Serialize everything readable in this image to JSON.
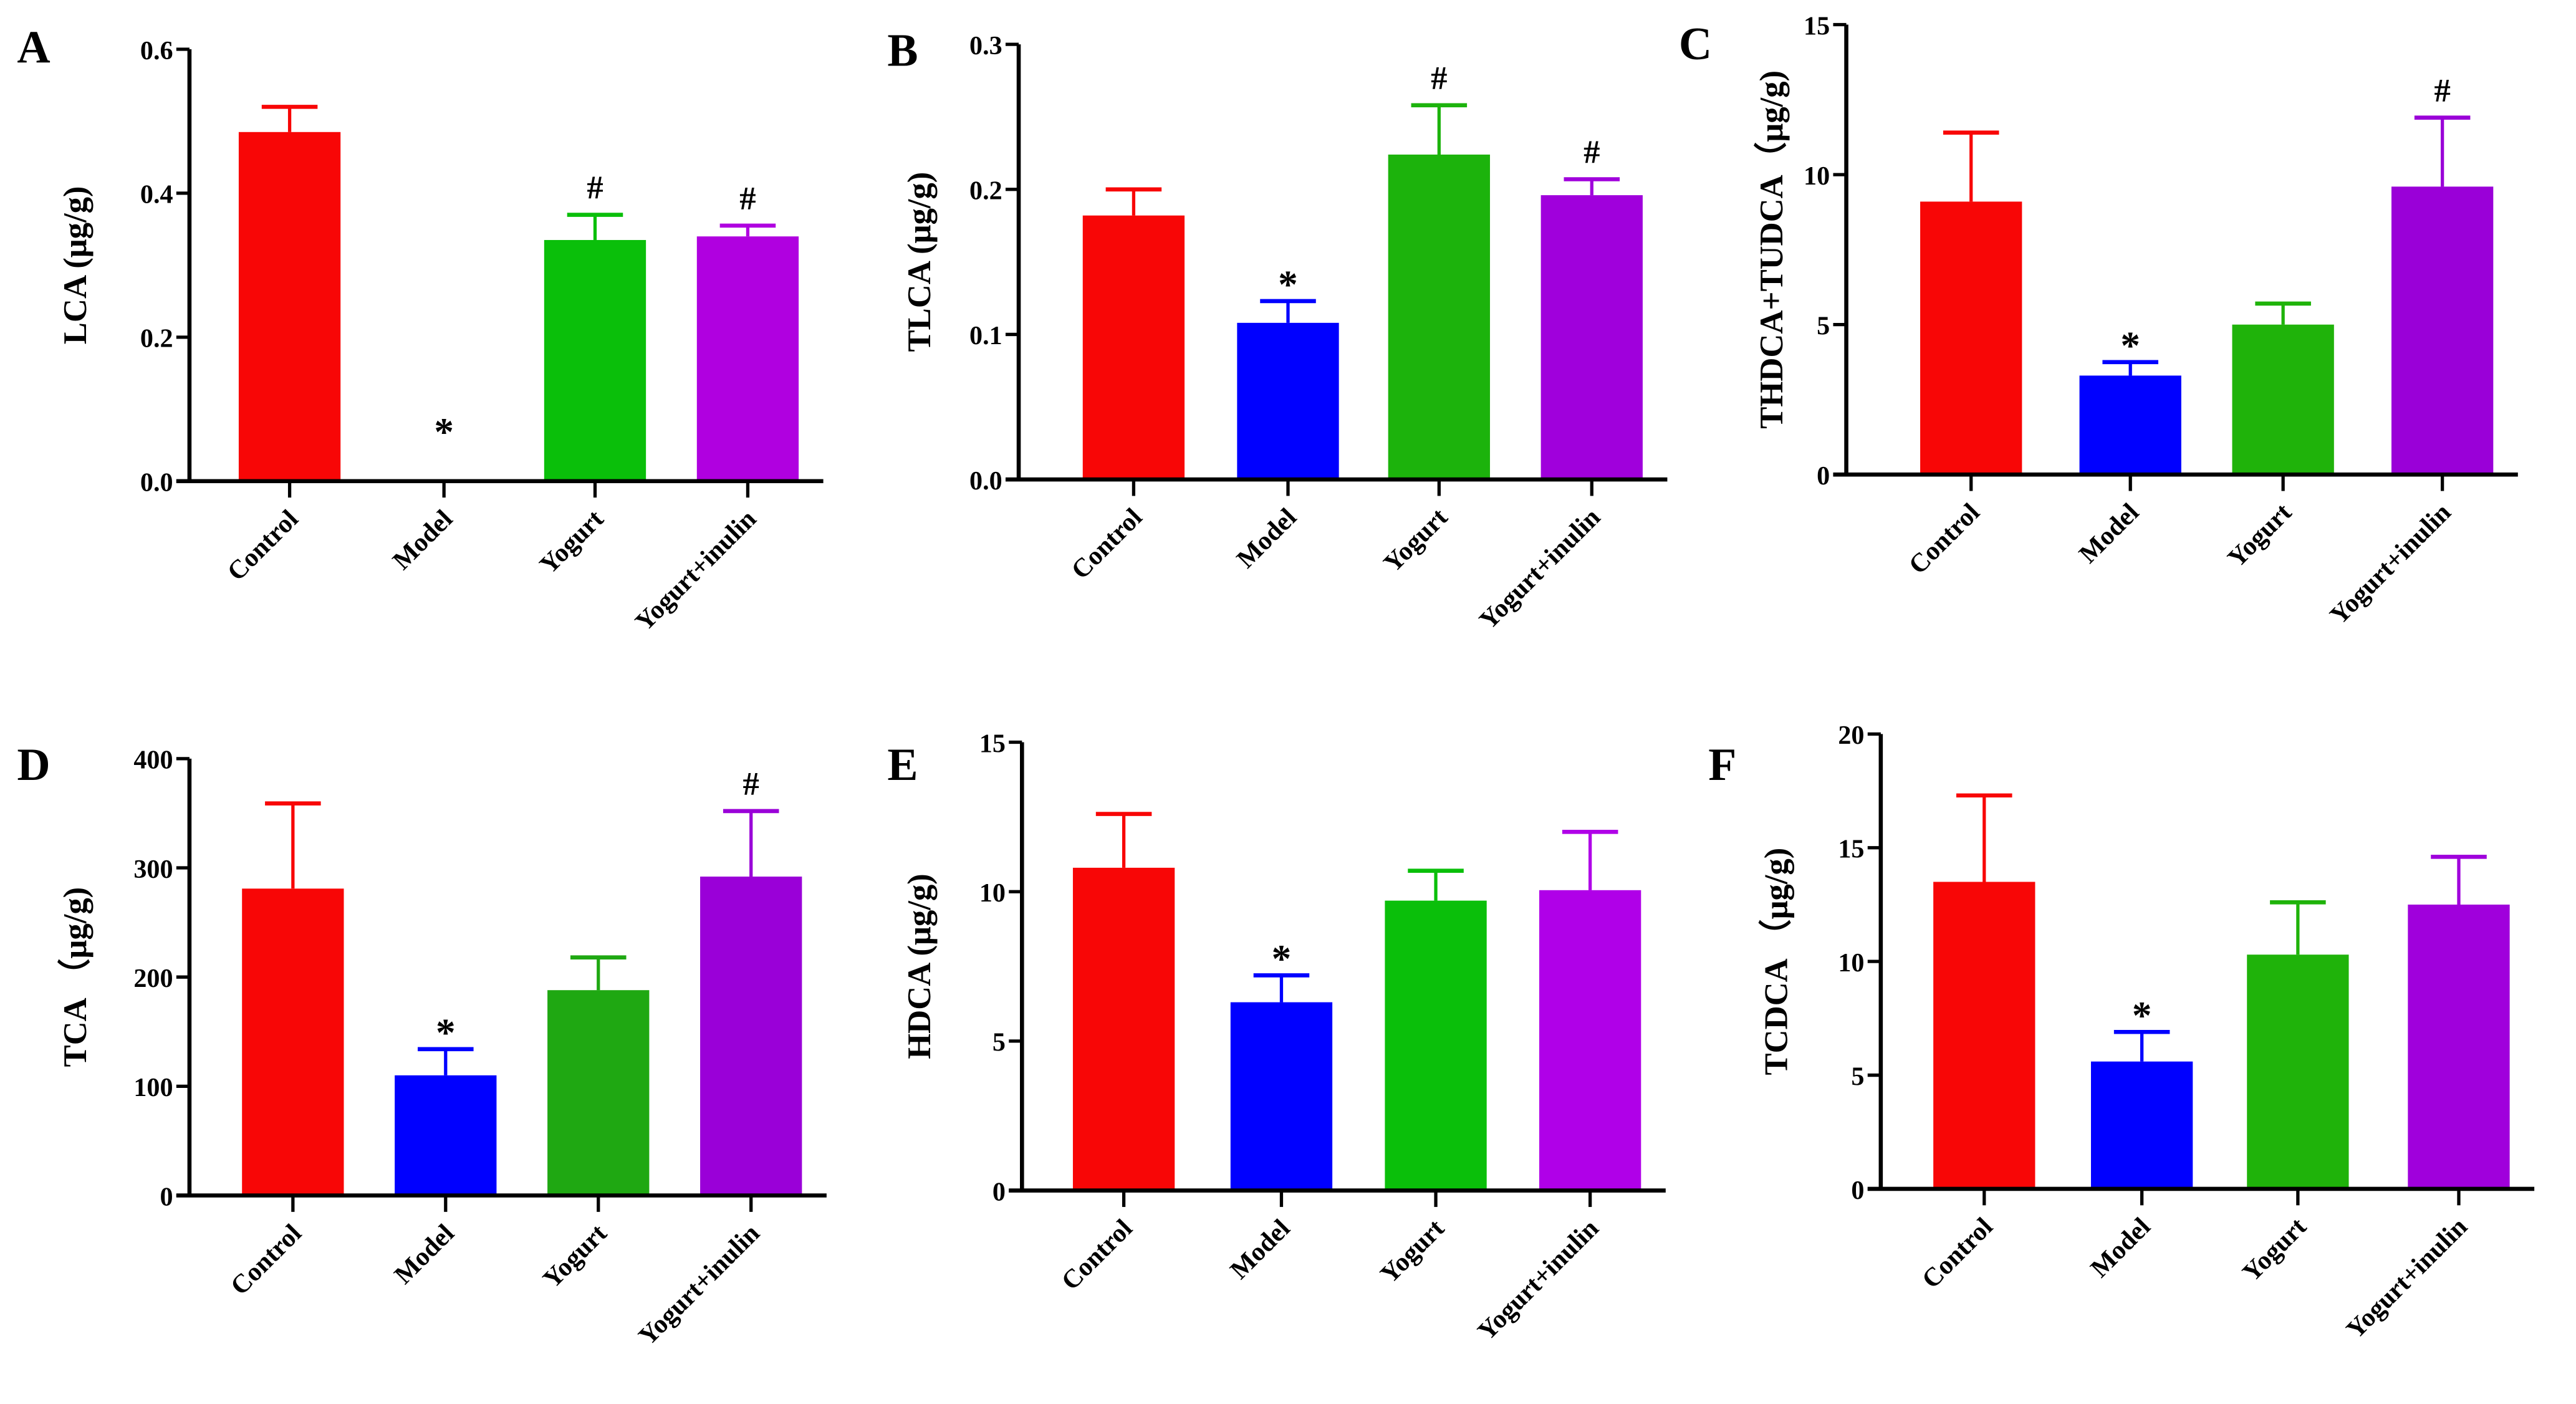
{
  "chart_data": [
    {
      "type": "bar",
      "panel": "A",
      "ylabel": "LCA (μg/g)",
      "ylim": [
        0,
        0.6
      ],
      "yticks": [
        "0.0",
        "0.2",
        "0.4",
        "0.6"
      ],
      "ytick_values": [
        0,
        0.2,
        0.4,
        0.6
      ],
      "categories": [
        "Control",
        "Model",
        "Yogurt",
        "Yogurt+inulin"
      ],
      "values": [
        0.485,
        0,
        0.335,
        0.34
      ],
      "errors": [
        0.035,
        0,
        0.035,
        0.015
      ],
      "markers": [
        "",
        "*",
        "#",
        "#"
      ],
      "colors": [
        "#f80606",
        "#0000ff",
        "#0abf0a",
        "#b000e0"
      ]
    },
    {
      "type": "bar",
      "panel": "B",
      "ylabel": "TLCA (μg/g)",
      "ylim": [
        0,
        0.3
      ],
      "yticks": [
        "0.0",
        "0.1",
        "0.2",
        "0.3"
      ],
      "ytick_values": [
        0,
        0.1,
        0.2,
        0.3
      ],
      "categories": [
        "Control",
        "Model",
        "Yogurt",
        "Yogurt+inulin"
      ],
      "values": [
        0.182,
        0.108,
        0.224,
        0.196
      ],
      "errors": [
        0.018,
        0.015,
        0.034,
        0.011
      ],
      "markers": [
        "",
        "*",
        "#",
        "#"
      ],
      "colors": [
        "#f80606",
        "#0000ff",
        "#1cb30c",
        "#a000dc"
      ]
    },
    {
      "type": "bar",
      "panel": "C",
      "ylabel": "THDCA+TUDCA（μg/g)",
      "ylim": [
        0,
        15
      ],
      "yticks": [
        "0",
        "5",
        "10",
        "15"
      ],
      "ytick_values": [
        0,
        5,
        10,
        15
      ],
      "categories": [
        "Control",
        "Model",
        "Yogurt",
        "Yogurt+inulin"
      ],
      "values": [
        9.1,
        3.3,
        5.0,
        9.6
      ],
      "errors": [
        2.3,
        0.45,
        0.7,
        2.3
      ],
      "markers": [
        "",
        "*",
        "",
        "#"
      ],
      "colors": [
        "#f80606",
        "#0000ff",
        "#1fb30a",
        "#9a00d8"
      ]
    },
    {
      "type": "bar",
      "panel": "D",
      "ylabel": "TCA （μg/g)",
      "ylim": [
        0,
        400
      ],
      "yticks": [
        "0",
        "100",
        "200",
        "300",
        "400"
      ],
      "ytick_values": [
        0,
        100,
        200,
        300,
        400
      ],
      "categories": [
        "Control",
        "Model",
        "Yogurt",
        "Yogurt+inulin"
      ],
      "values": [
        281,
        110,
        188,
        292
      ],
      "errors": [
        78,
        24,
        30,
        60
      ],
      "markers": [
        "",
        "*",
        "",
        "#"
      ],
      "colors": [
        "#f80606",
        "#0000ff",
        "#1fa812",
        "#9a00d8"
      ]
    },
    {
      "type": "bar",
      "panel": "E",
      "ylabel": "HDCA (μg/g)",
      "ylim": [
        0,
        15
      ],
      "yticks": [
        "0",
        "5",
        "10",
        "15"
      ],
      "ytick_values": [
        0,
        5,
        10,
        15
      ],
      "categories": [
        "Control",
        "Model",
        "Yogurt",
        "Yogurt+inulin"
      ],
      "values": [
        10.8,
        6.3,
        9.7,
        10.05
      ],
      "errors": [
        1.8,
        0.9,
        1.0,
        1.95
      ],
      "markers": [
        "",
        "*",
        "",
        ""
      ],
      "colors": [
        "#f80606",
        "#0000ff",
        "#0abf0a",
        "#b000e8"
      ]
    },
    {
      "type": "bar",
      "panel": "F",
      "ylabel": "TCDCA （μg/g)",
      "ylim": [
        0,
        20
      ],
      "yticks": [
        "0",
        "5",
        "10",
        "15",
        "20"
      ],
      "ytick_values": [
        0,
        5,
        10,
        15,
        20
      ],
      "categories": [
        "Control",
        "Model",
        "Yogurt",
        "Yogurt+inulin"
      ],
      "values": [
        13.5,
        5.6,
        10.3,
        12.5
      ],
      "errors": [
        3.8,
        1.3,
        2.3,
        2.1
      ],
      "markers": [
        "",
        "*",
        "",
        ""
      ],
      "colors": [
        "#f80606",
        "#0000ff",
        "#1fb30a",
        "#a000dc"
      ]
    }
  ]
}
